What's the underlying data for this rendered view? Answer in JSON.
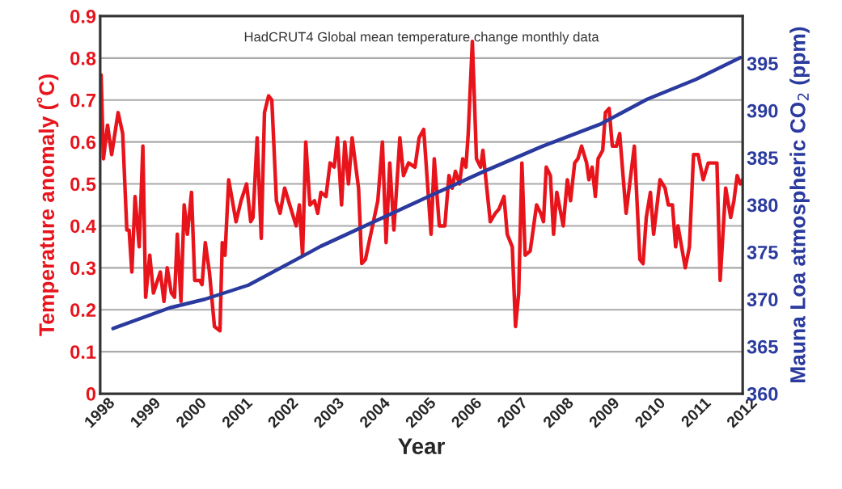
{
  "chart_data": {
    "type": "line",
    "title": "HadCRUT4 Global mean temperature change monthly data",
    "xlabel": "Year",
    "ylabel": "Temperature anomaly (˚C)",
    "y2label": "Mauna Loa atmospheric CO$_{2}$ (ppm)",
    "xlim": [
      1998,
      2012
    ],
    "xticks": [
      1998,
      1999,
      2000,
      2001,
      2002,
      2003,
      2004,
      2005,
      2006,
      2007,
      2008,
      2009,
      2010,
      2011,
      2012
    ],
    "ylim": [
      0,
      0.9
    ],
    "yticks": [
      0,
      0.1,
      0.2,
      0.3,
      0.4,
      0.5,
      0.6,
      0.7,
      0.8,
      0.9
    ],
    "y2lim": [
      360,
      400
    ],
    "y2ticks": [
      360,
      365,
      370,
      375,
      380,
      385,
      390,
      395
    ],
    "grid": "y",
    "legend": false,
    "marker": "none",
    "line_style": "solid",
    "series": [
      {
        "color": "#e8141c",
        "x": [
          1998.02,
          1998.07,
          1998.16,
          1998.25,
          1998.39,
          1998.49,
          1998.58,
          1998.63,
          1998.69,
          1998.76,
          1998.85,
          1998.93,
          1998.99,
          1999.08,
          1999.16,
          1999.31,
          1999.39,
          1999.46,
          1999.55,
          1999.62,
          1999.68,
          1999.76,
          1999.83,
          1999.9,
          1999.99,
          2000.06,
          2000.17,
          2000.22,
          2000.29,
          2000.38,
          2000.49,
          2000.61,
          2000.66,
          2000.72,
          2000.8,
          2000.96,
          2001.07,
          2001.19,
          2001.28,
          2001.33,
          2001.42,
          2001.51,
          2001.58,
          2001.67,
          2001.74,
          2001.84,
          2001.92,
          2002.02,
          2002.13,
          2002.27,
          2002.34,
          2002.41,
          2002.48,
          2002.57,
          2002.67,
          2002.74,
          2002.81,
          2002.92,
          2003.01,
          2003.1,
          2003.17,
          2003.26,
          2003.33,
          2003.41,
          2003.49,
          2003.63,
          2003.7,
          2003.78,
          2004.05,
          2004.15,
          2004.23,
          2004.31,
          2004.4,
          2004.53,
          2004.61,
          2004.72,
          2004.86,
          2004.95,
          2005.05,
          2005.21,
          2005.28,
          2005.39,
          2005.51,
          2005.6,
          2005.67,
          2005.74,
          2005.83,
          2005.9,
          2005.97,
          2006.02,
          2006.11,
          2006.2,
          2006.29,
          2006.34,
          2006.5,
          2006.61,
          2006.69,
          2006.8,
          2006.87,
          2006.98,
          2007.05,
          2007.12,
          2007.19,
          2007.26,
          2007.37,
          2007.51,
          2007.6,
          2007.66,
          2007.72,
          2007.81,
          2007.88,
          2007.95,
          2008.09,
          2008.18,
          2008.25,
          2008.34,
          2008.41,
          2008.49,
          2008.6,
          2008.65,
          2008.72,
          2008.79,
          2008.85,
          2008.95,
          2009.01,
          2009.09,
          2009.16,
          2009.25,
          2009.32,
          2009.46,
          2009.64,
          2009.76,
          2009.83,
          2009.9,
          2009.99,
          2010.06,
          2010.2,
          2010.31,
          2010.38,
          2010.47,
          2010.54,
          2010.59,
          2010.75,
          2010.84,
          2010.93,
          2011.03,
          2011.14,
          2011.25,
          2011.44,
          2011.51,
          2011.63,
          2011.74,
          2011.81,
          2011.88,
          2011.95,
          2012.0
        ],
        "values": [
          0.76,
          0.56,
          0.64,
          0.57,
          0.67,
          0.62,
          0.39,
          0.39,
          0.29,
          0.47,
          0.35,
          0.59,
          0.23,
          0.33,
          0.24,
          0.29,
          0.22,
          0.3,
          0.24,
          0.23,
          0.38,
          0.22,
          0.45,
          0.38,
          0.48,
          0.27,
          0.27,
          0.26,
          0.36,
          0.29,
          0.16,
          0.15,
          0.36,
          0.33,
          0.51,
          0.41,
          0.46,
          0.5,
          0.41,
          0.42,
          0.61,
          0.37,
          0.67,
          0.71,
          0.7,
          0.46,
          0.43,
          0.49,
          0.45,
          0.4,
          0.45,
          0.33,
          0.6,
          0.45,
          0.46,
          0.43,
          0.48,
          0.47,
          0.55,
          0.54,
          0.61,
          0.45,
          0.6,
          0.5,
          0.61,
          0.49,
          0.31,
          0.32,
          0.46,
          0.6,
          0.36,
          0.55,
          0.39,
          0.61,
          0.52,
          0.55,
          0.54,
          0.61,
          0.63,
          0.38,
          0.56,
          0.4,
          0.4,
          0.52,
          0.49,
          0.53,
          0.5,
          0.56,
          0.54,
          0.62,
          0.84,
          0.56,
          0.54,
          0.58,
          0.41,
          0.43,
          0.44,
          0.47,
          0.38,
          0.35,
          0.16,
          0.24,
          0.55,
          0.33,
          0.34,
          0.45,
          0.43,
          0.41,
          0.54,
          0.52,
          0.38,
          0.48,
          0.4,
          0.51,
          0.46,
          0.55,
          0.56,
          0.59,
          0.55,
          0.51,
          0.54,
          0.47,
          0.56,
          0.58,
          0.67,
          0.68,
          0.59,
          0.59,
          0.62,
          0.43,
          0.59,
          0.32,
          0.31,
          0.42,
          0.48,
          0.38,
          0.51,
          0.49,
          0.45,
          0.45,
          0.35,
          0.4,
          0.3,
          0.35,
          0.57,
          0.57,
          0.51,
          0.55,
          0.55,
          0.27,
          0.49,
          0.42,
          0.46,
          0.52,
          0.5,
          0.51
        ]
      },
      {
        "color": "#2a3a9e",
        "axis": "y2",
        "x": [
          1998.28,
          1999.52,
          2000.28,
          2001.23,
          2002.46,
          2002.8,
          2005.16,
          2006.34,
          2007.63,
          2008.92,
          2009.92,
          2010.98,
          2011.95
        ],
        "values": [
          366.9,
          369.1,
          370.0,
          371.5,
          374.7,
          375.6,
          380.9,
          383.5,
          386.2,
          388.6,
          391.2,
          393.3,
          395.6
        ]
      }
    ]
  }
}
